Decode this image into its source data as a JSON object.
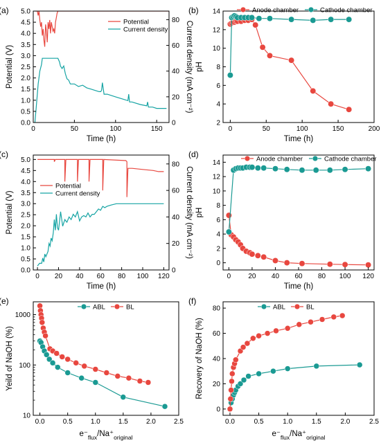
{
  "chart_data": [
    {
      "id": "a",
      "panel_label": "(a)",
      "type": "line",
      "xlabel": "Time (h)",
      "ylabel": "Potential (V)",
      "ylabel2": "Current density (mA cm⁻²)",
      "xlim": [
        0,
        165
      ],
      "ylim": [
        0,
        5
      ],
      "y2lim": [
        0,
        86.7
      ],
      "xticks": [
        0,
        50,
        100,
        150
      ],
      "yticks": [
        0.0,
        0.5,
        1.0,
        1.5,
        2.0,
        2.5,
        3.0,
        3.5,
        4.0,
        4.5,
        5.0
      ],
      "y2ticks": [
        0,
        20,
        40,
        60,
        80
      ],
      "legend_position": "top-right",
      "series": [
        {
          "name": "Potential",
          "axis": "left",
          "color": "#e8473f",
          "x": [
            2,
            5,
            6,
            7,
            8,
            9,
            10,
            11,
            12,
            13,
            14,
            15,
            16,
            17,
            18,
            19,
            20,
            21,
            22,
            23,
            24,
            25,
            26,
            27,
            28,
            29,
            30,
            32,
            35,
            60,
            100,
            130,
            165
          ],
          "y": [
            5.0,
            5.0,
            4.8,
            5.0,
            4.6,
            4.3,
            4.5,
            3.9,
            4.2,
            3.7,
            3.4,
            4.4,
            4.1,
            3.6,
            4.5,
            4.2,
            4.6,
            4.0,
            4.5,
            4.3,
            4.1,
            4.2,
            4.0,
            4.5,
            4.7,
            4.9,
            5.0,
            5.0,
            5.0,
            5.0,
            5.0,
            5.0,
            5.0
          ]
        },
        {
          "name": "Current density",
          "axis": "right",
          "color": "#14a3a3",
          "x": [
            2,
            4,
            6,
            8,
            10,
            11,
            12,
            14,
            20,
            25,
            30,
            32,
            33,
            35,
            37,
            39,
            41,
            43,
            45,
            50,
            55,
            60,
            65,
            70,
            75,
            80,
            82,
            83,
            84,
            86,
            90,
            100,
            110,
            115,
            116,
            117,
            120,
            130,
            138,
            139,
            140,
            145,
            150,
            155,
            160,
            162
          ],
          "y": [
            0,
            15,
            30,
            40,
            45,
            50,
            50,
            50,
            50,
            50,
            50,
            47,
            44,
            42,
            44,
            38,
            34,
            33,
            30,
            30,
            28,
            29,
            27,
            26,
            25,
            24,
            24,
            25,
            31,
            22,
            22,
            20,
            18,
            17,
            22,
            16,
            16,
            14,
            13,
            16,
            12,
            12,
            11,
            11,
            11,
            11
          ]
        }
      ]
    },
    {
      "id": "b",
      "panel_label": "(b)",
      "type": "line",
      "xlabel": "Time (h)",
      "ylabel": "pH",
      "xlim": [
        -10,
        200
      ],
      "ylim": [
        2,
        14
      ],
      "xticks": [
        0,
        50,
        100,
        150,
        200
      ],
      "yticks": [
        2,
        4,
        6,
        8,
        10,
        12,
        14
      ],
      "legend_position": "top",
      "series": [
        {
          "name": "Anode chamber",
          "color": "#e8473f",
          "x": [
            0,
            2,
            4,
            6,
            8,
            10,
            15,
            20,
            25,
            30,
            35,
            45,
            55,
            85,
            115,
            140,
            165
          ],
          "y": [
            12.6,
            12.7,
            12.8,
            12.8,
            12.9,
            12.9,
            12.9,
            13.0,
            13.0,
            13.1,
            12.5,
            10.1,
            9.2,
            8.7,
            5.4,
            4.0,
            3.4
          ]
        },
        {
          "name": "Cathode chamber",
          "color": "#1a9a93",
          "x": [
            0,
            2,
            4,
            6,
            8,
            10,
            15,
            20,
            25,
            30,
            40,
            55,
            85,
            115,
            140,
            165
          ],
          "y": [
            7.1,
            13.3,
            13.4,
            13.5,
            13.4,
            13.3,
            13.3,
            13.3,
            13.3,
            13.3,
            13.2,
            13.2,
            13.1,
            13.0,
            13.1,
            13.1
          ]
        }
      ]
    },
    {
      "id": "c",
      "panel_label": "(c)",
      "type": "line",
      "xlabel": "Time (h)",
      "ylabel": "Potential (V)",
      "ylabel2": "Current density (mA cm⁻²)",
      "xlim": [
        -4,
        125
      ],
      "ylim": [
        0,
        5.2
      ],
      "y2lim": [
        0,
        86.7
      ],
      "xticks": [
        0,
        20,
        40,
        60,
        80,
        100,
        120
      ],
      "yticks": [
        0.0,
        0.5,
        1.0,
        1.5,
        2.0,
        2.5,
        3.0,
        3.5,
        4.0,
        4.5,
        5.0
      ],
      "y2ticks": [
        0,
        20,
        40,
        60,
        80
      ],
      "legend_position": "center-left",
      "series": [
        {
          "name": "Potential",
          "axis": "left",
          "color": "#e8473f",
          "x": [
            0,
            16,
            16.01,
            17,
            26,
            26.01,
            27,
            38,
            38.01,
            39,
            49,
            49.01,
            50,
            62,
            62.01,
            63,
            84,
            85,
            85.01,
            86,
            87,
            90,
            100,
            110,
            115,
            120
          ],
          "y": [
            5.0,
            5.0,
            4.9,
            5.0,
            5.0,
            4.0,
            5.0,
            5.0,
            4.0,
            5.0,
            5.0,
            4.0,
            5.0,
            5.0,
            3.6,
            5.0,
            4.95,
            4.9,
            3.3,
            4.6,
            4.6,
            4.6,
            4.55,
            4.5,
            4.45,
            4.45
          ]
        },
        {
          "name": "Current density",
          "axis": "right",
          "color": "#14a3a3",
          "x": [
            0,
            2,
            4,
            5,
            6,
            7,
            8,
            10,
            11,
            12,
            13,
            14,
            15,
            16,
            17,
            18,
            19,
            20,
            22,
            24,
            26,
            28,
            30,
            32,
            34,
            36,
            38,
            40,
            42,
            44,
            46,
            48,
            50,
            52,
            54,
            56,
            58,
            60,
            62,
            64,
            66,
            70,
            75,
            80,
            84,
            90,
            100,
            110,
            120
          ],
          "y": [
            3,
            5,
            5,
            9,
            6,
            12,
            10,
            14,
            20,
            18,
            24,
            22,
            28,
            38,
            30,
            42,
            32,
            30,
            44,
            33,
            38,
            36,
            40,
            38,
            42,
            40,
            44,
            37,
            40,
            41,
            40,
            43,
            40,
            42,
            42,
            44,
            46,
            45,
            48,
            47,
            48,
            49,
            50,
            50,
            50,
            50,
            50,
            50,
            50
          ]
        }
      ]
    },
    {
      "id": "d",
      "panel_label": "(d)",
      "type": "line",
      "xlabel": "Time (h)",
      "ylabel": "pH",
      "xlim": [
        -5,
        125
      ],
      "ylim": [
        -1,
        15
      ],
      "xticks": [
        0,
        20,
        40,
        60,
        80,
        100,
        120
      ],
      "yticks": [
        0,
        2,
        4,
        6,
        8,
        10,
        12,
        14
      ],
      "legend_position": "top",
      "series": [
        {
          "name": "Anode chamber",
          "color": "#e8473f",
          "x": [
            0,
            2,
            4,
            6,
            8,
            10,
            12,
            15,
            18,
            20,
            25,
            30,
            40,
            50,
            63,
            87,
            100,
            120
          ],
          "y": [
            6.6,
            3.9,
            3.6,
            3.2,
            2.9,
            2.5,
            2.0,
            1.6,
            1.4,
            1.2,
            1.0,
            0.8,
            0.3,
            0.0,
            -0.1,
            -0.2,
            -0.25,
            -0.3
          ]
        },
        {
          "name": "Cathode chamber",
          "color": "#1a9a93",
          "x": [
            0,
            4,
            6,
            8,
            10,
            12,
            15,
            18,
            20,
            25,
            30,
            40,
            50,
            63,
            75,
            87,
            100,
            120
          ],
          "y": [
            4.3,
            12.9,
            13.1,
            13.2,
            13.2,
            13.2,
            13.3,
            13.3,
            13.3,
            13.2,
            13.2,
            13.1,
            13.0,
            12.9,
            12.9,
            12.9,
            13.0,
            13.1
          ]
        }
      ]
    },
    {
      "id": "e",
      "panel_label": "(e)",
      "type": "line",
      "yscale": "log",
      "xlabel": "e⁻",
      "xlabel_sub1": "flux",
      "xlabel_mid": "/Na⁺",
      "xlabel_sub2": "original",
      "ylabel": "Yeild of NaOH (%)",
      "xlim": [
        -0.12,
        2.5
      ],
      "ylim": [
        10,
        1800
      ],
      "xticks": [
        0.0,
        0.5,
        1.0,
        1.5,
        2.0,
        2.5
      ],
      "yticks": [
        10,
        100,
        1000
      ],
      "legend_position": "top",
      "series": [
        {
          "name": "ABL",
          "color": "#1a9a93",
          "x": [
            0.0,
            0.02,
            0.05,
            0.08,
            0.12,
            0.17,
            0.23,
            0.32,
            0.5,
            0.75,
            1.0,
            1.5,
            2.25
          ],
          "y": [
            300,
            280,
            230,
            190,
            160,
            130,
            110,
            90,
            70,
            55,
            45,
            23,
            15
          ]
        },
        {
          "name": "BL",
          "color": "#e8473f",
          "x": [
            0.0,
            0.01,
            0.02,
            0.03,
            0.04,
            0.06,
            0.08,
            0.1,
            0.18,
            0.23,
            0.3,
            0.4,
            0.5,
            0.65,
            0.8,
            1.0,
            1.2,
            1.4,
            1.6,
            1.8,
            1.95
          ],
          "y": [
            1500,
            1200,
            1000,
            850,
            700,
            540,
            450,
            380,
            210,
            190,
            170,
            145,
            130,
            110,
            95,
            82,
            70,
            60,
            55,
            48,
            45
          ]
        }
      ]
    },
    {
      "id": "f",
      "panel_label": "(f)",
      "type": "line",
      "xlabel": "e⁻",
      "xlabel_sub1": "flux",
      "xlabel_mid": "/Na⁺",
      "xlabel_sub2": "original",
      "ylabel": "Recovery of NaOH (%)",
      "xlim": [
        -0.12,
        2.5
      ],
      "ylim": [
        -5,
        85
      ],
      "xticks": [
        0.0,
        0.5,
        1.0,
        1.5,
        2.0,
        2.5
      ],
      "yticks": [
        0,
        20,
        40,
        60,
        80
      ],
      "legend_position": "top",
      "series": [
        {
          "name": "ABL",
          "color": "#1a9a93",
          "x": [
            0.0,
            0.02,
            0.04,
            0.06,
            0.08,
            0.1,
            0.14,
            0.18,
            0.24,
            0.32,
            0.5,
            0.75,
            1.0,
            1.5,
            2.25
          ],
          "y": [
            0,
            5,
            8,
            11,
            13,
            15,
            18,
            20,
            23,
            26,
            28,
            30,
            32,
            34,
            35
          ]
        },
        {
          "name": "BL",
          "color": "#e8473f",
          "x": [
            0.0,
            0.01,
            0.02,
            0.03,
            0.04,
            0.06,
            0.08,
            0.1,
            0.18,
            0.23,
            0.3,
            0.4,
            0.5,
            0.65,
            0.8,
            1.0,
            1.2,
            1.4,
            1.6,
            1.8,
            1.95
          ],
          "y": [
            0,
            8,
            15,
            22,
            28,
            33,
            36,
            39,
            46,
            49,
            52,
            56,
            58,
            60,
            62,
            64,
            67,
            69,
            71,
            73,
            74
          ]
        }
      ]
    }
  ]
}
